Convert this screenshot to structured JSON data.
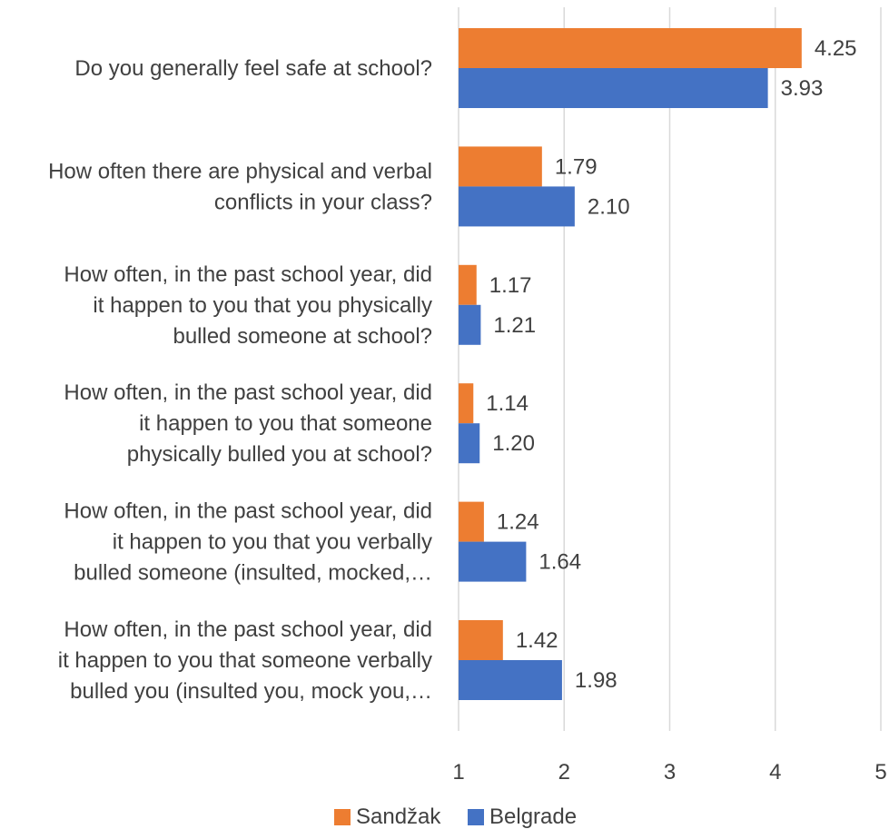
{
  "chart_data": {
    "type": "bar",
    "orientation": "horizontal",
    "categories": [
      [
        "Do you generally feel safe at school?"
      ],
      [
        "How often there are physical and verbal",
        "conflicts in your class?"
      ],
      [
        "How often, in the past school year, did",
        "it happen to you that you physically",
        "bulled someone at school?"
      ],
      [
        "How often, in the past school year, did",
        "it happen to you that someone",
        "physically bulled you at school?"
      ],
      [
        "How often, in the past school year, did",
        "it happen to you that you verbally",
        "bulled someone (insulted, mocked,…"
      ],
      [
        "How often, in the past school year, did",
        "it happen to you that someone verbally",
        "bulled you (insulted you, mock you,…"
      ]
    ],
    "series": [
      {
        "name": "Sandžak",
        "color": "#ED7D31",
        "values": [
          4.25,
          1.79,
          1.17,
          1.14,
          1.24,
          1.42
        ],
        "labels": [
          "4.25",
          "1.79",
          "1.17",
          "1.14",
          "1.24",
          "1.42"
        ]
      },
      {
        "name": "Belgrade",
        "color": "#4472C4",
        "values": [
          3.93,
          2.1,
          1.21,
          1.2,
          1.64,
          1.98
        ],
        "labels": [
          "3.93",
          "2.10",
          "1.21",
          "1.20",
          "1.64",
          "1.98"
        ]
      }
    ],
    "xlim": [
      1,
      5
    ],
    "xticks": [
      "1",
      "2",
      "3",
      "4",
      "5"
    ],
    "grid": true,
    "legend_position": "bottom",
    "title": "",
    "xlabel": "",
    "ylabel": ""
  }
}
